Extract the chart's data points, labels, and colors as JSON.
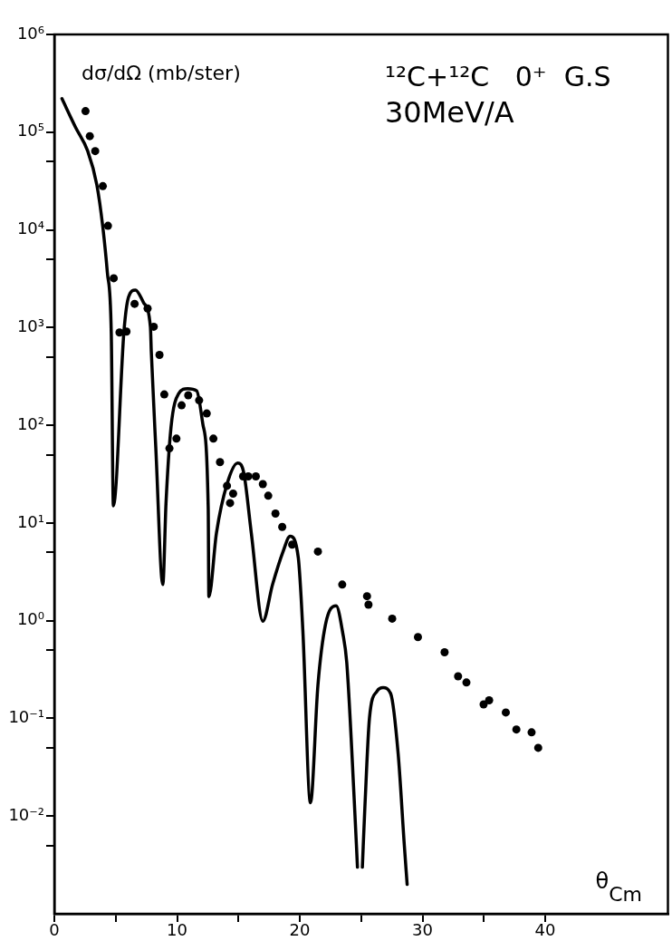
{
  "chart_data": {
    "type": "line",
    "xlabel": "θ$_{Cm}$",
    "ylabel": "dσ/dΩ (mb/ster)",
    "annotations": [
      "¹²C+¹²C   0⁺  G.S",
      "30MeV/A"
    ],
    "xlim": [
      0,
      50
    ],
    "xticks": [
      0,
      {
        "value": 5,
        "label": null
      },
      10,
      {
        "value": 15,
        "label": null
      },
      20,
      {
        "value": 25,
        "label": null
      },
      30,
      {
        "value": 35,
        "label": null
      },
      40
    ],
    "ylim": [
      0.001,
      1000000
    ],
    "log": "y",
    "grid": false,
    "yticks": [
      {
        "value": 0.005,
        "label": null
      },
      {
        "value": 0.01,
        "label": "10⁻²"
      },
      {
        "value": 0.05,
        "label": null
      },
      {
        "value": 0.1,
        "label": "10⁻¹"
      },
      {
        "value": 0.5,
        "label": null
      },
      {
        "value": 1,
        "label": "10⁰"
      },
      {
        "value": 5,
        "label": null
      },
      {
        "value": 10,
        "label": "10¹"
      },
      {
        "value": 50,
        "label": null
      },
      {
        "value": 100,
        "label": "10²"
      },
      {
        "value": 500,
        "label": null
      },
      {
        "value": 1000,
        "label": "10³"
      },
      {
        "value": 5000,
        "label": null
      },
      {
        "value": 10000,
        "label": "10⁴"
      },
      {
        "value": 50000,
        "label": null
      },
      {
        "value": 100000,
        "label": "10⁵"
      },
      {
        "value": 1000000,
        "label": "10⁶"
      }
    ],
    "series": [
      {
        "type": "line",
        "color": "#000000",
        "marker": "none",
        "line_style": "solid",
        "x": [
          0.62,
          1.73,
          2.72,
          3.46,
          3.95,
          4.32,
          4.64,
          4.81,
          5.68,
          6.05,
          6.61,
          7.28,
          7.83,
          7.9,
          8.27,
          8.84,
          9.1,
          9.51,
          10.12,
          10.86,
          11.6,
          12.1,
          12.54,
          12.59,
          13.21,
          14.07,
          14.94,
          15.43,
          16.05,
          16.99,
          17.78,
          18.64,
          19.21,
          19.88,
          20.25,
          20.87,
          21.48,
          22.1,
          22.96,
          23.5,
          23.83,
          24.44,
          24.7,
          24.89,
          25.1,
          25.31,
          25.68,
          26.3,
          26.79,
          27.41,
          28.02,
          28.52,
          28.75
        ],
        "values": [
          220000,
          112000,
          64000,
          29000,
          10700,
          3660,
          870,
          15,
          940,
          2060,
          2420,
          1790,
          1010,
          570,
          58,
          2.34,
          16,
          96,
          210,
          237,
          225,
          103,
          14,
          1.76,
          7.9,
          25,
          41,
          33,
          7.9,
          0.99,
          2.34,
          5.1,
          7.3,
          4.4,
          0.8,
          0.0137,
          0.22,
          0.92,
          1.42,
          0.75,
          0.37,
          0.0145,
          0.003,
          null,
          0.003,
          0.0127,
          0.101,
          0.19,
          0.206,
          0.179,
          0.043,
          0.005,
          0.002
        ]
      },
      {
        "type": "scatter",
        "color": "#000000",
        "marker": "circle",
        "x": [
          2.54,
          2.89,
          3.33,
          3.95,
          4.37,
          4.84,
          5.31,
          5.88,
          6.54,
          7.6,
          8.1,
          8.57,
          8.96,
          9.38,
          9.95,
          10.37,
          10.91,
          11.8,
          12.42,
          12.96,
          13.5,
          14.07,
          14.32,
          14.57,
          15.38,
          15.8,
          16.42,
          16.99,
          17.43,
          18.02,
          18.57,
          19.38,
          21.48,
          23.46,
          25.48,
          25.6,
          27.53,
          29.63,
          31.8,
          32.9,
          33.58,
          34.98,
          35.43,
          36.79,
          37.65,
          38.89,
          39.43
        ],
        "values": [
          164000,
          91000,
          64000,
          28000,
          11000,
          3200,
          890,
          910,
          1750,
          1570,
          1020,
          525,
          207,
          58,
          73,
          160,
          203,
          180,
          132,
          73,
          42,
          24,
          16,
          20,
          30,
          30,
          30,
          25,
          19,
          12.5,
          9.1,
          6.0,
          5.1,
          2.34,
          1.78,
          1.46,
          1.05,
          0.68,
          0.475,
          0.27,
          0.233,
          0.139,
          0.153,
          0.115,
          0.077,
          0.072,
          0.05
        ]
      }
    ]
  }
}
